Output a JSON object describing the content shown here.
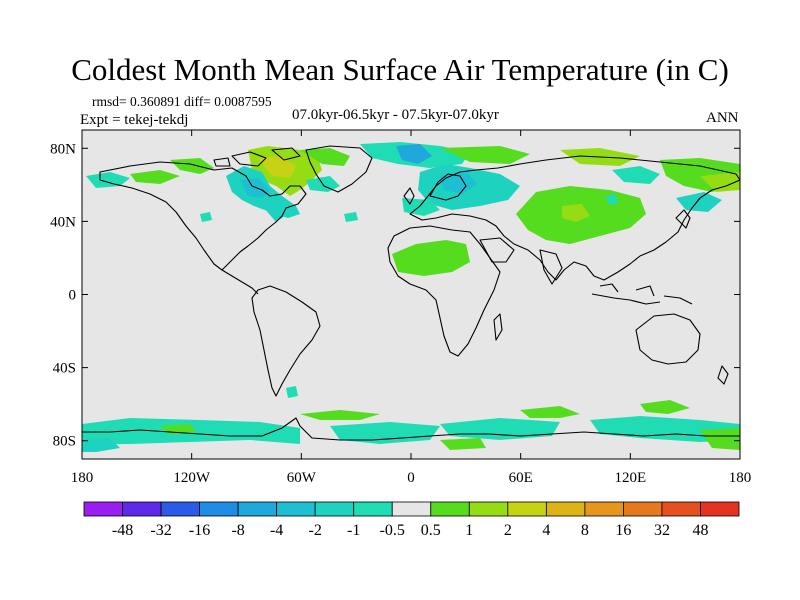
{
  "title": "Coldest Month Mean Surface Air Temperature (in C)",
  "stats": {
    "rmsd_diff": "rmsd= 0.360891  diff= 0.0087595",
    "experiment": "Expt = tekej-tekdj",
    "period": "07.0kyr-06.5kyr - 07.5kyr-07.0kyr",
    "season": "ANN"
  },
  "map": {
    "projection": "cylindrical equidistant",
    "lon_range": [
      -180,
      180
    ],
    "lat_range": [
      -90,
      90
    ],
    "background_color": "#e6e6e6",
    "coastline_color": "#000000",
    "x_tick_labels": [
      "180",
      "120W",
      "60W",
      "0",
      "60E",
      "120E",
      "180"
    ],
    "y_tick_labels": [
      "80N",
      "40N",
      "0",
      "40S",
      "80S"
    ]
  },
  "colorbar": {
    "labels": [
      "-48",
      "-32",
      "-16",
      "-8",
      "-4",
      "-2",
      "-1",
      "-0.5",
      "0.5",
      "1",
      "2",
      "4",
      "8",
      "16",
      "32",
      "48"
    ],
    "colors": [
      "#9b1ef0",
      "#5e28e6",
      "#2a5ae6",
      "#1f8ce6",
      "#1ea8dc",
      "#1cc0d2",
      "#1ed2c0",
      "#20dcb4",
      "#e6e6e6",
      "#55dc1e",
      "#96dc14",
      "#c8d214",
      "#dcb414",
      "#e6961e",
      "#e6781e",
      "#e6501e",
      "#e6321e"
    ]
  }
}
